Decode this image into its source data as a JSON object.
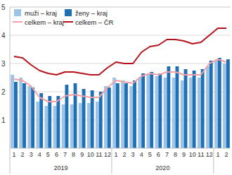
{
  "chart_data": {
    "type": "bar",
    "categories": [
      "1",
      "2",
      "3",
      "4",
      "5",
      "6",
      "7",
      "8",
      "9",
      "10",
      "11",
      "12",
      "1",
      "2",
      "3",
      "4",
      "5",
      "6",
      "7",
      "8",
      "9",
      "10",
      "11",
      "12",
      "1",
      "2"
    ],
    "category_groups": [
      {
        "label": "2019",
        "count": 12
      },
      {
        "label": "2020",
        "count": 12
      }
    ],
    "series": [
      {
        "name": "muži – kraj",
        "color": "#9dc3e6",
        "type": "bar",
        "values": [
          2.6,
          2.5,
          2.2,
          1.65,
          1.5,
          1.5,
          1.55,
          1.55,
          1.6,
          1.6,
          1.65,
          2.2,
          2.5,
          2.4,
          2.2,
          2.5,
          2.6,
          2.55,
          2.5,
          2.5,
          2.4,
          2.5,
          2.5,
          2.9,
          3.1,
          3.0
        ]
      },
      {
        "name": "ženy – kraj",
        "color": "#1f6fb5",
        "type": "bar",
        "values": [
          2.35,
          2.3,
          2.15,
          1.95,
          1.85,
          1.85,
          2.25,
          2.3,
          2.1,
          2.05,
          2.0,
          2.15,
          2.3,
          2.3,
          2.4,
          2.65,
          2.7,
          2.65,
          2.9,
          2.9,
          2.8,
          2.75,
          2.8,
          3.1,
          3.2,
          3.15
        ]
      },
      {
        "name": "celkem – kraj",
        "color": "#f4a0a6",
        "type": "line",
        "values": [
          2.45,
          2.4,
          2.2,
          1.8,
          1.65,
          1.65,
          1.85,
          1.9,
          1.85,
          1.8,
          1.8,
          2.15,
          2.4,
          2.35,
          2.3,
          2.55,
          2.65,
          2.6,
          2.7,
          2.7,
          2.6,
          2.6,
          2.6,
          3.0,
          3.15,
          3.05
        ]
      },
      {
        "name": "celkem – ČR",
        "color": "#b5121b",
        "type": "line",
        "values": [
          3.25,
          3.2,
          2.95,
          2.75,
          2.65,
          2.6,
          2.7,
          2.7,
          2.65,
          2.6,
          2.6,
          2.85,
          3.05,
          3.0,
          3.0,
          3.4,
          3.6,
          3.65,
          3.85,
          3.85,
          3.8,
          3.7,
          3.75,
          4.0,
          4.25,
          4.25
        ]
      }
    ],
    "ylim": [
      0,
      5
    ],
    "yticks": [
      1,
      2,
      3,
      4,
      5
    ],
    "grid": true,
    "legend": "upper left"
  }
}
